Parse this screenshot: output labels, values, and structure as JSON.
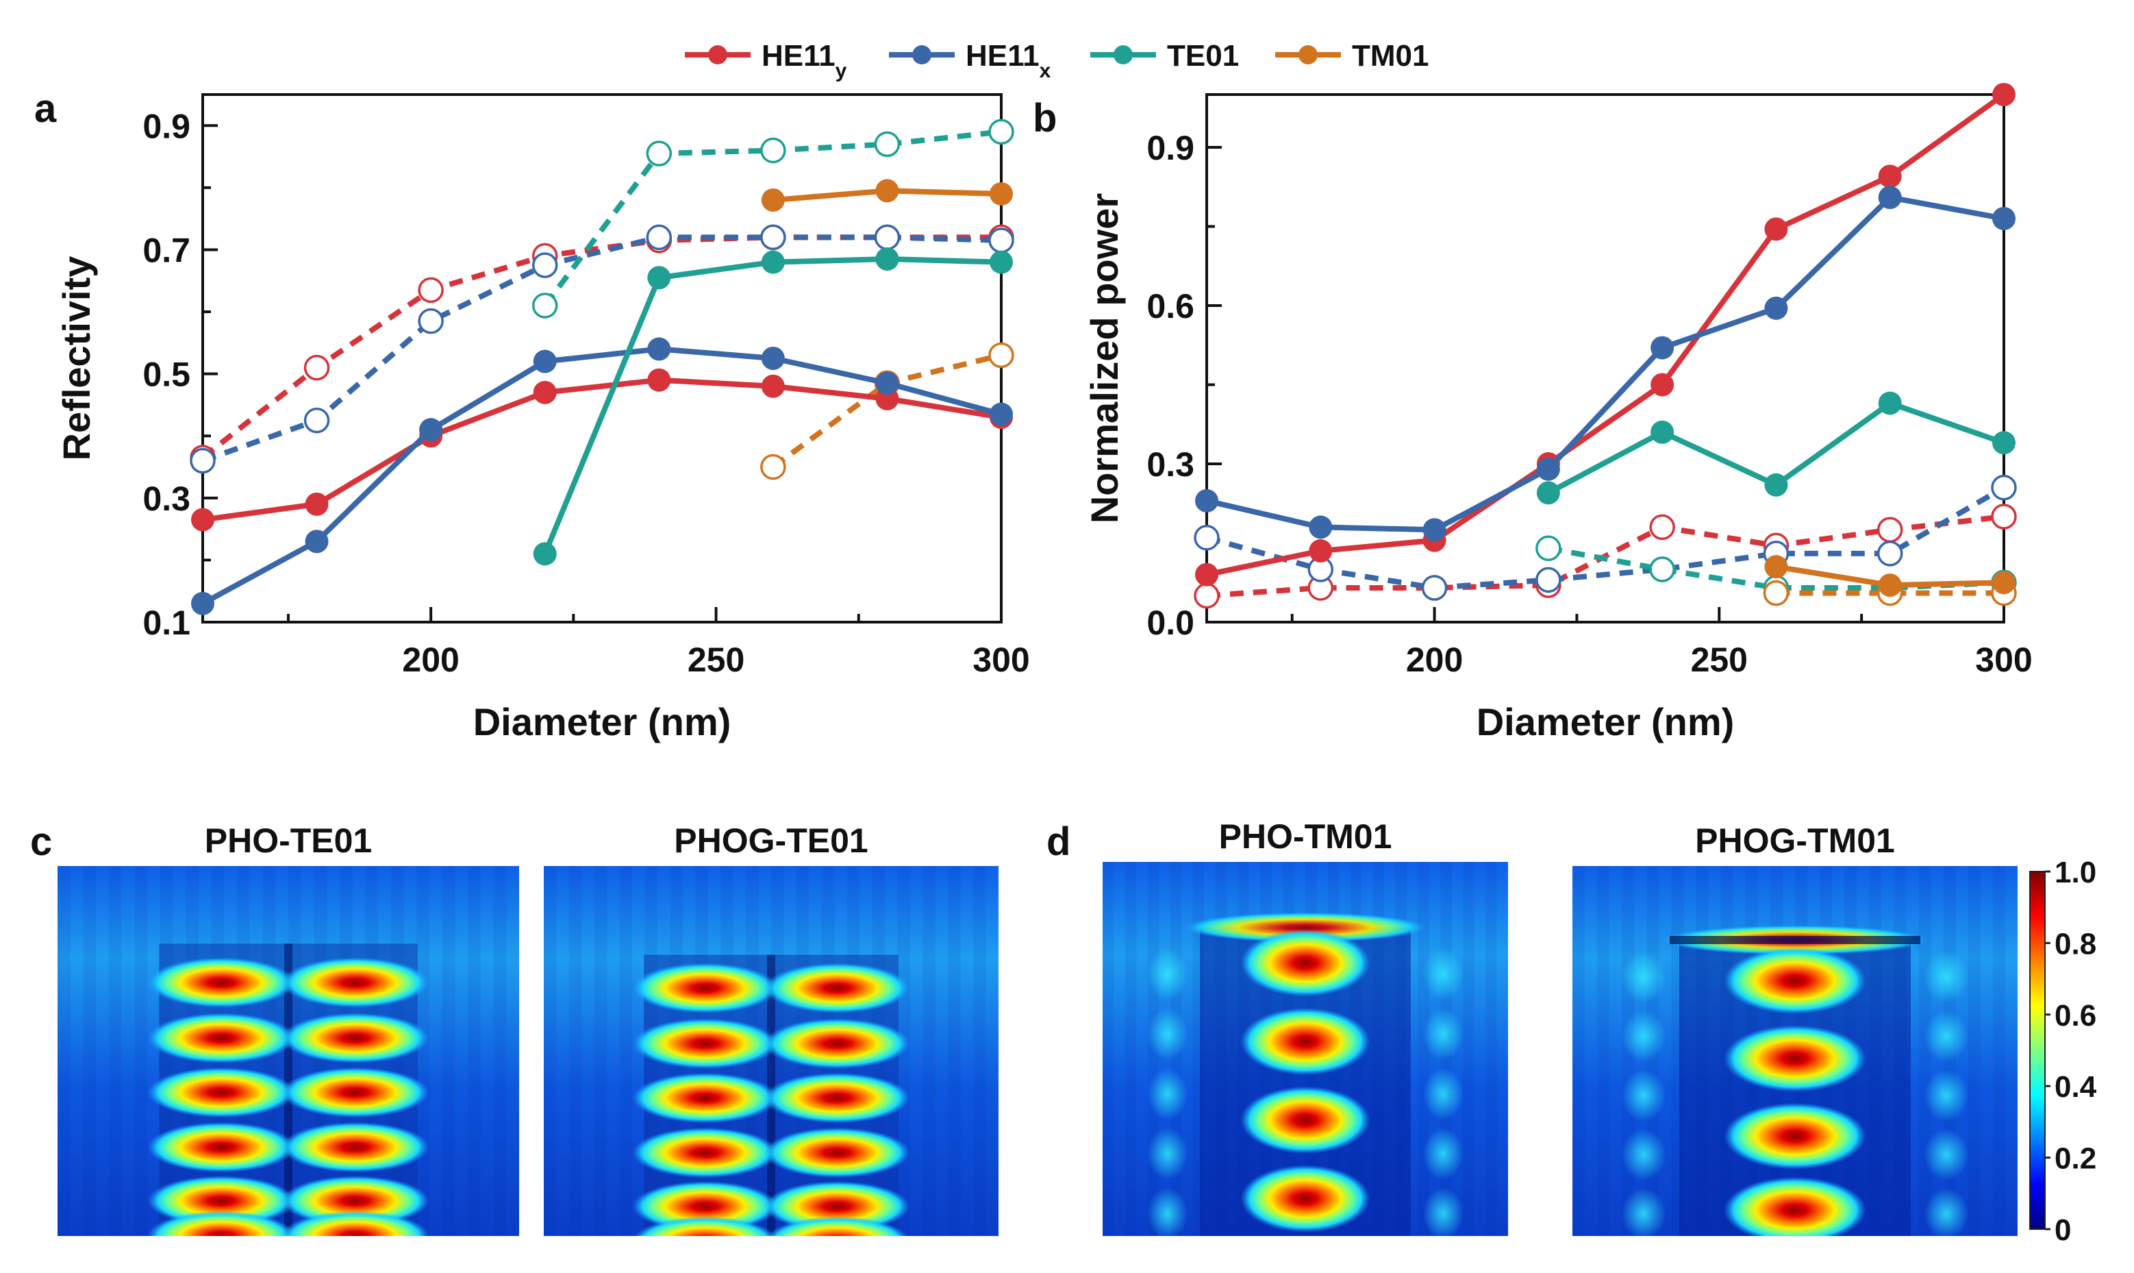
{
  "legend": {
    "items": [
      {
        "label": "HE11",
        "sub": "y",
        "color": "#d6343a"
      },
      {
        "label": "HE11",
        "sub": "x",
        "color": "#3a67a8"
      },
      {
        "label": "TE01",
        "sub": "",
        "color": "#1fa092"
      },
      {
        "label": "TM01",
        "sub": "",
        "color": "#d2731f"
      }
    ]
  },
  "chart_data": [
    {
      "panel": "a",
      "type": "line",
      "xlabel": "Diameter (nm)",
      "ylabel": "Reflectivity",
      "xlim": [
        160,
        300
      ],
      "ylim": [
        0.1,
        0.95
      ],
      "xticks": [
        "200",
        "250",
        "300"
      ],
      "yticks": [
        "0.1",
        "0.3",
        "0.5",
        "0.7",
        "0.9"
      ],
      "series": [
        {
          "name": "HE11y",
          "style": "solid",
          "color": "#d6343a",
          "x": [
            160,
            180,
            200,
            220,
            240,
            260,
            280,
            300
          ],
          "values": [
            0.265,
            0.29,
            0.4,
            0.47,
            0.49,
            0.48,
            0.46,
            0.43
          ]
        },
        {
          "name": "HE11x",
          "style": "solid",
          "color": "#3a67a8",
          "x": [
            160,
            180,
            200,
            220,
            240,
            260,
            280,
            300
          ],
          "values": [
            0.13,
            0.23,
            0.41,
            0.52,
            0.54,
            0.525,
            0.485,
            0.435
          ]
        },
        {
          "name": "TE01",
          "style": "solid",
          "color": "#1fa092",
          "x": [
            220,
            240,
            260,
            280,
            300
          ],
          "values": [
            0.21,
            0.655,
            0.68,
            0.685,
            0.68
          ]
        },
        {
          "name": "TM01",
          "style": "solid",
          "color": "#d2731f",
          "x": [
            260,
            280,
            300
          ],
          "values": [
            0.78,
            0.795,
            0.79
          ]
        },
        {
          "name": "HE11y",
          "style": "dashed",
          "color": "#d6343a",
          "x": [
            160,
            180,
            200,
            220,
            240,
            260,
            280,
            300
          ],
          "values": [
            0.365,
            0.51,
            0.635,
            0.69,
            0.715,
            0.72,
            0.72,
            0.72
          ]
        },
        {
          "name": "HE11x",
          "style": "dashed",
          "color": "#3a67a8",
          "x": [
            160,
            180,
            200,
            220,
            240,
            260,
            280,
            300
          ],
          "values": [
            0.36,
            0.425,
            0.585,
            0.675,
            0.72,
            0.72,
            0.72,
            0.715
          ]
        },
        {
          "name": "TE01",
          "style": "dashed",
          "color": "#1fa092",
          "x": [
            220,
            240,
            260,
            280,
            300
          ],
          "values": [
            0.61,
            0.855,
            0.86,
            0.87,
            0.89
          ]
        },
        {
          "name": "TM01",
          "style": "dashed",
          "color": "#d2731f",
          "x": [
            260,
            280,
            300
          ],
          "values": [
            0.35,
            0.485,
            0.53
          ]
        }
      ]
    },
    {
      "panel": "b",
      "type": "line",
      "xlabel": "Diameter (nm)",
      "ylabel": "Normalized power",
      "xlim": [
        160,
        300
      ],
      "ylim": [
        0.0,
        1.0
      ],
      "xticks": [
        "200",
        "250",
        "300"
      ],
      "yticks": [
        "0.0",
        "0.3",
        "0.6",
        "0.9"
      ],
      "series": [
        {
          "name": "HE11y",
          "style": "solid",
          "color": "#d6343a",
          "x": [
            160,
            180,
            200,
            220,
            240,
            260,
            280,
            300
          ],
          "values": [
            0.09,
            0.135,
            0.155,
            0.3,
            0.45,
            0.745,
            0.845,
            1.0
          ]
        },
        {
          "name": "HE11x",
          "style": "solid",
          "color": "#3a67a8",
          "x": [
            160,
            180,
            200,
            220,
            240,
            260,
            280,
            300
          ],
          "values": [
            0.23,
            0.18,
            0.175,
            0.29,
            0.52,
            0.595,
            0.805,
            0.765
          ]
        },
        {
          "name": "TE01",
          "style": "solid",
          "color": "#1fa092",
          "x": [
            220,
            240,
            260,
            280,
            300
          ],
          "values": [
            0.245,
            0.36,
            0.26,
            0.415,
            0.34
          ]
        },
        {
          "name": "TM01",
          "style": "solid",
          "color": "#d2731f",
          "x": [
            260,
            280,
            300
          ],
          "values": [
            0.105,
            0.07,
            0.075
          ]
        },
        {
          "name": "HE11y",
          "style": "dashed",
          "color": "#d6343a",
          "x": [
            160,
            180,
            200,
            220,
            240,
            260,
            280,
            300
          ],
          "values": [
            0.05,
            0.065,
            0.065,
            0.07,
            0.18,
            0.145,
            0.175,
            0.2
          ]
        },
        {
          "name": "HE11x",
          "style": "dashed",
          "color": "#3a67a8",
          "x": [
            160,
            180,
            200,
            220,
            240,
            260,
            280,
            300
          ],
          "values": [
            0.16,
            0.1,
            0.065,
            0.08,
            0.1,
            0.13,
            0.13,
            0.255
          ]
        },
        {
          "name": "TE01",
          "style": "dashed",
          "color": "#1fa092",
          "x": [
            220,
            240,
            260,
            280,
            300
          ],
          "values": [
            0.14,
            0.1,
            0.065,
            0.065,
            0.075
          ]
        },
        {
          "name": "TM01",
          "style": "dashed",
          "color": "#d2731f",
          "x": [
            260,
            280,
            300
          ],
          "values": [
            0.055,
            0.055,
            0.055
          ]
        }
      ]
    }
  ],
  "panels": {
    "a": "a",
    "b": "b",
    "c": "c",
    "d": "d"
  },
  "fieldmaps": [
    {
      "title": "PHO-TE01",
      "mode": "TE01",
      "gap": false
    },
    {
      "title": "PHOG-TE01",
      "mode": "TE01",
      "gap": true
    },
    {
      "title": "PHO-TM01",
      "mode": "TM01",
      "gap": false
    },
    {
      "title": "PHOG-TM01",
      "mode": "TM01",
      "gap": true
    }
  ],
  "colorbar": {
    "ticks": [
      "1.0",
      "0.8",
      "0.6",
      "0.4",
      "0.2",
      "0"
    ],
    "stops": [
      "#00007f",
      "#0000ff",
      "#0080ff",
      "#00ffff",
      "#80ff80",
      "#ffff00",
      "#ff8000",
      "#ff0000",
      "#7f0000"
    ]
  }
}
